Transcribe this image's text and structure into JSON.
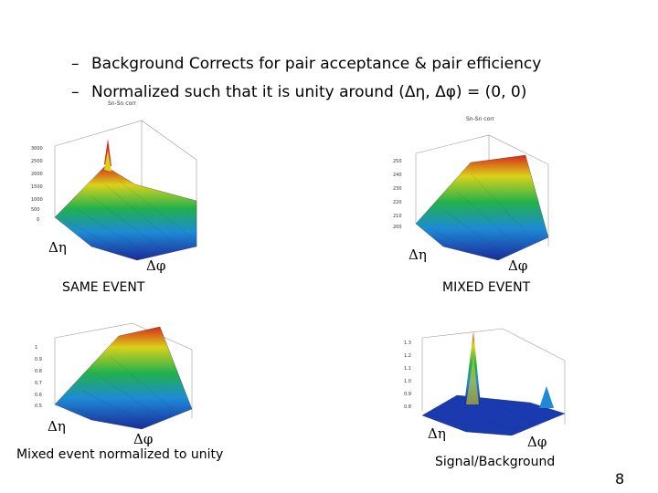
{
  "bullets": [
    "Background Corrects for pair acceptance & pair efficiency",
    "Normalized such that it is unity around (Δη, Δφ) = (0, 0)"
  ],
  "bullet_marker": "–",
  "plots": {
    "same_event": {
      "hist_title": "Sn-Sn corr",
      "caption": "SAME EVENT",
      "eta_label": "Δη",
      "phi_label": "Δφ",
      "z_ticks": [
        "3000",
        "2500",
        "2000",
        "1500",
        "1000",
        "500",
        "0"
      ]
    },
    "mixed_event": {
      "hist_title": "Sn-Sn corr",
      "caption": "MIXED EVENT",
      "eta_label": "Δη",
      "phi_label": "Δφ",
      "z_ticks": [
        "250",
        "240",
        "230",
        "220",
        "210",
        "200"
      ]
    },
    "mixed_normalized": {
      "caption": "Mixed event normalized to unity",
      "eta_label": "Δη",
      "phi_label": "Δφ",
      "z_ticks": [
        "1",
        "0.9",
        "0.8",
        "0.7",
        "0.6",
        "0.5"
      ]
    },
    "signal_background": {
      "caption": "Signal/Background",
      "eta_label": "Δη",
      "phi_label": "Δφ",
      "z_ticks": [
        "1.3",
        "1.2",
        "1.1",
        "1.0",
        "0.9",
        "0.8"
      ]
    }
  },
  "page_number": "8"
}
